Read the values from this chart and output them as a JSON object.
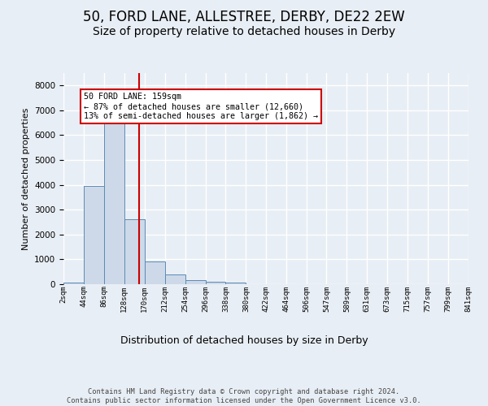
{
  "title1": "50, FORD LANE, ALLESTREE, DERBY, DE22 2EW",
  "title2": "Size of property relative to detached houses in Derby",
  "xlabel": "Distribution of detached houses by size in Derby",
  "ylabel": "Number of detached properties",
  "bar_color": "#cdd9e8",
  "bar_edge_color": "#5b8ab5",
  "vline_color": "#cc0000",
  "vline_x": 159,
  "annotation_text": "50 FORD LANE: 159sqm\n← 87% of detached houses are smaller (12,660)\n13% of semi-detached houses are larger (1,862) →",
  "annotation_box_color": "#ffffff",
  "annotation_box_edge": "#cc0000",
  "footer": "Contains HM Land Registry data © Crown copyright and database right 2024.\nContains public sector information licensed under the Open Government Licence v3.0.",
  "bin_edges": [
    2,
    44,
    86,
    128,
    170,
    212,
    254,
    296,
    338,
    380,
    422,
    464,
    506,
    547,
    589,
    631,
    673,
    715,
    757,
    799,
    841
  ],
  "bar_heights": [
    70,
    3950,
    6500,
    2600,
    900,
    380,
    170,
    100,
    50,
    0,
    0,
    0,
    0,
    0,
    0,
    0,
    0,
    0,
    0,
    0
  ],
  "ylim": [
    0,
    8500
  ],
  "yticks": [
    0,
    1000,
    2000,
    3000,
    4000,
    5000,
    6000,
    7000,
    8000
  ],
  "background_color": "#e8eef5",
  "plot_bg_color": "#e8eef5",
  "grid_color": "#ffffff",
  "title1_fontsize": 12,
  "title2_fontsize": 10,
  "xlabel_fontsize": 9,
  "ylabel_fontsize": 8,
  "tick_labels": [
    "2sqm",
    "44sqm",
    "86sqm",
    "128sqm",
    "170sqm",
    "212sqm",
    "254sqm",
    "296sqm",
    "338sqm",
    "380sqm",
    "422sqm",
    "464sqm",
    "506sqm",
    "547sqm",
    "589sqm",
    "631sqm",
    "673sqm",
    "715sqm",
    "757sqm",
    "799sqm",
    "841sqm"
  ]
}
